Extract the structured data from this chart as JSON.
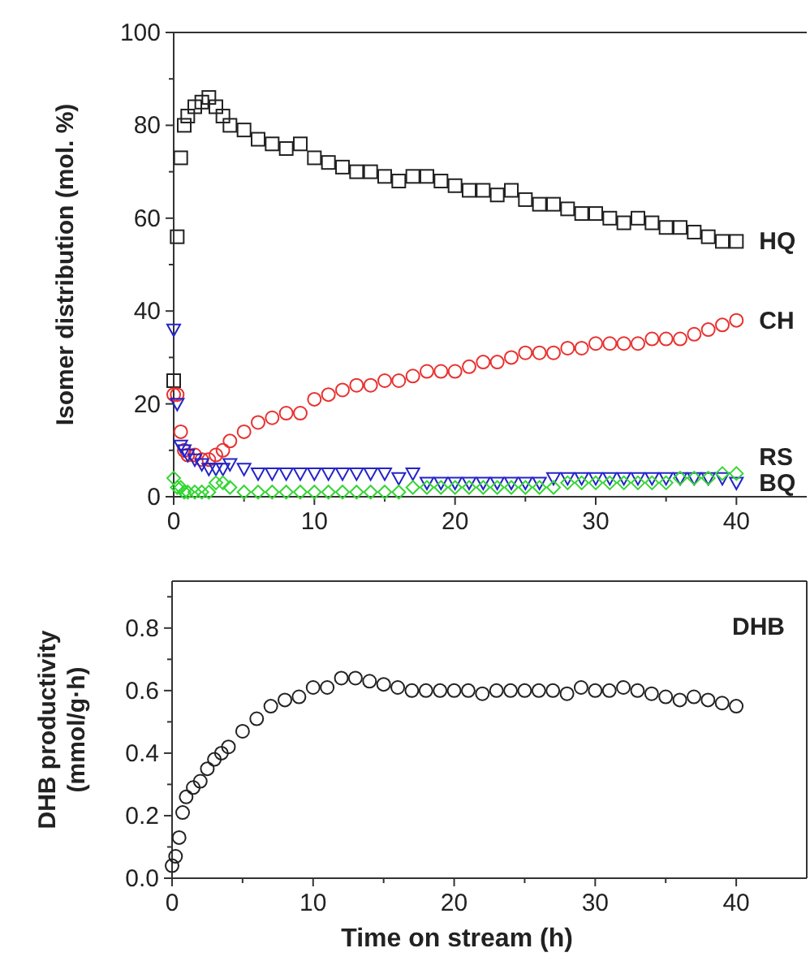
{
  "chart_data": [
    {
      "type": "scatter",
      "ylabel": "Isomer distribution (mol. %)",
      "xlim": [
        0,
        45
      ],
      "ylim": [
        0,
        100
      ],
      "xticks": [
        0,
        {
          "value": 5,
          "label": null
        },
        10,
        {
          "value": 15,
          "label": null
        },
        20,
        {
          "value": 25,
          "label": null
        },
        30,
        {
          "value": 35,
          "label": null
        },
        40
      ],
      "yticks": [
        0,
        {
          "value": 10,
          "label": null
        },
        20,
        {
          "value": 30,
          "label": null
        },
        40,
        {
          "value": 50,
          "label": null
        },
        60,
        {
          "value": 70,
          "label": null
        },
        80,
        {
          "value": 90,
          "label": null
        },
        100
      ],
      "x": [
        0,
        0.25,
        0.5,
        0.75,
        1,
        1.5,
        2,
        2.5,
        3,
        3.5,
        4,
        5,
        6,
        7,
        8,
        9,
        10,
        11,
        12,
        13,
        14,
        15,
        16,
        17,
        18,
        19,
        20,
        21,
        22,
        23,
        24,
        25,
        26,
        27,
        28,
        29,
        30,
        31,
        32,
        33,
        34,
        35,
        36,
        37,
        38,
        39,
        40
      ],
      "series": [
        {
          "name": "HQ",
          "color": "#222222",
          "marker": "square",
          "values": [
            25,
            56,
            73,
            80,
            82,
            84,
            85,
            86,
            84,
            82,
            80,
            79,
            77,
            76,
            75,
            76,
            73,
            72,
            71,
            70,
            70,
            69,
            68,
            69,
            69,
            68,
            67,
            66,
            66,
            65,
            66,
            64,
            63,
            63,
            62,
            61,
            61,
            60,
            59,
            60,
            59,
            58,
            58,
            57,
            56,
            55,
            55
          ]
        },
        {
          "name": "CH",
          "color": "#e8312f",
          "marker": "circle",
          "values": [
            22,
            22,
            14,
            10,
            9,
            9,
            8,
            8,
            9,
            10,
            12,
            14,
            16,
            17,
            18,
            18,
            21,
            22,
            23,
            24,
            24,
            25,
            25,
            26,
            27,
            27,
            27,
            28,
            29,
            29,
            30,
            31,
            31,
            31,
            32,
            32,
            33,
            33,
            33,
            33,
            34,
            34,
            34,
            35,
            36,
            37,
            38
          ]
        },
        {
          "name": "RS",
          "color": "#2424c8",
          "marker": "triangle-down",
          "values": [
            36,
            20,
            11,
            10,
            9,
            8,
            7,
            6,
            6,
            6,
            7,
            6,
            5,
            5,
            5,
            5,
            5,
            5,
            5,
            5,
            5,
            5,
            4,
            5,
            3,
            3,
            3,
            3,
            3,
            3,
            3,
            3,
            3,
            4,
            4,
            4,
            4,
            4,
            4,
            4,
            4,
            4,
            4,
            4,
            4,
            4,
            3
          ]
        },
        {
          "name": "BQ",
          "color": "#33d633",
          "marker": "diamond",
          "values": [
            4,
            2,
            2,
            1,
            1,
            1,
            1,
            1,
            3,
            3,
            2,
            1,
            1,
            1,
            1,
            1,
            1,
            1,
            1,
            1,
            1,
            1,
            1,
            2,
            2,
            2,
            2,
            2,
            2,
            2,
            2,
            2,
            2,
            2,
            3,
            3,
            3,
            3,
            3,
            3,
            3,
            3,
            4,
            4,
            4,
            5,
            5
          ]
        }
      ]
    },
    {
      "type": "scatter",
      "xlabel": "Time on stream (h)",
      "ylabel": "DHB productivity (mmol/g·h)",
      "xlim": [
        0,
        45
      ],
      "ylim": [
        0,
        0.95
      ],
      "xticks": [
        0,
        {
          "value": 5,
          "label": null
        },
        10,
        {
          "value": 15,
          "label": null
        },
        20,
        {
          "value": 25,
          "label": null
        },
        30,
        {
          "value": 35,
          "label": null
        },
        40
      ],
      "yticks": [
        {
          "value": 0,
          "label": "0.0"
        },
        {
          "value": 0.1,
          "label": null
        },
        0.2,
        {
          "value": 0.3,
          "label": null
        },
        0.4,
        {
          "value": 0.5,
          "label": null
        },
        0.6,
        {
          "value": 0.7,
          "label": null
        },
        0.8,
        {
          "value": 0.9,
          "label": null
        }
      ],
      "x": [
        0,
        0.25,
        0.5,
        0.75,
        1,
        1.5,
        2,
        2.5,
        3,
        3.5,
        4,
        5,
        6,
        7,
        8,
        9,
        10,
        11,
        12,
        13,
        14,
        15,
        16,
        17,
        18,
        19,
        20,
        21,
        22,
        23,
        24,
        25,
        26,
        27,
        28,
        29,
        30,
        31,
        32,
        33,
        34,
        35,
        36,
        37,
        38,
        39,
        40
      ],
      "series": [
        {
          "name": "DHB",
          "color": "#222222",
          "marker": "circle",
          "values": [
            0.04,
            0.07,
            0.13,
            0.21,
            0.26,
            0.29,
            0.31,
            0.35,
            0.38,
            0.4,
            0.42,
            0.47,
            0.51,
            0.55,
            0.57,
            0.58,
            0.61,
            0.61,
            0.64,
            0.64,
            0.63,
            0.62,
            0.61,
            0.6,
            0.6,
            0.6,
            0.6,
            0.6,
            0.59,
            0.6,
            0.6,
            0.6,
            0.6,
            0.6,
            0.59,
            0.61,
            0.6,
            0.6,
            0.61,
            0.6,
            0.59,
            0.58,
            0.57,
            0.58,
            0.57,
            0.56,
            0.55
          ]
        }
      ]
    }
  ]
}
